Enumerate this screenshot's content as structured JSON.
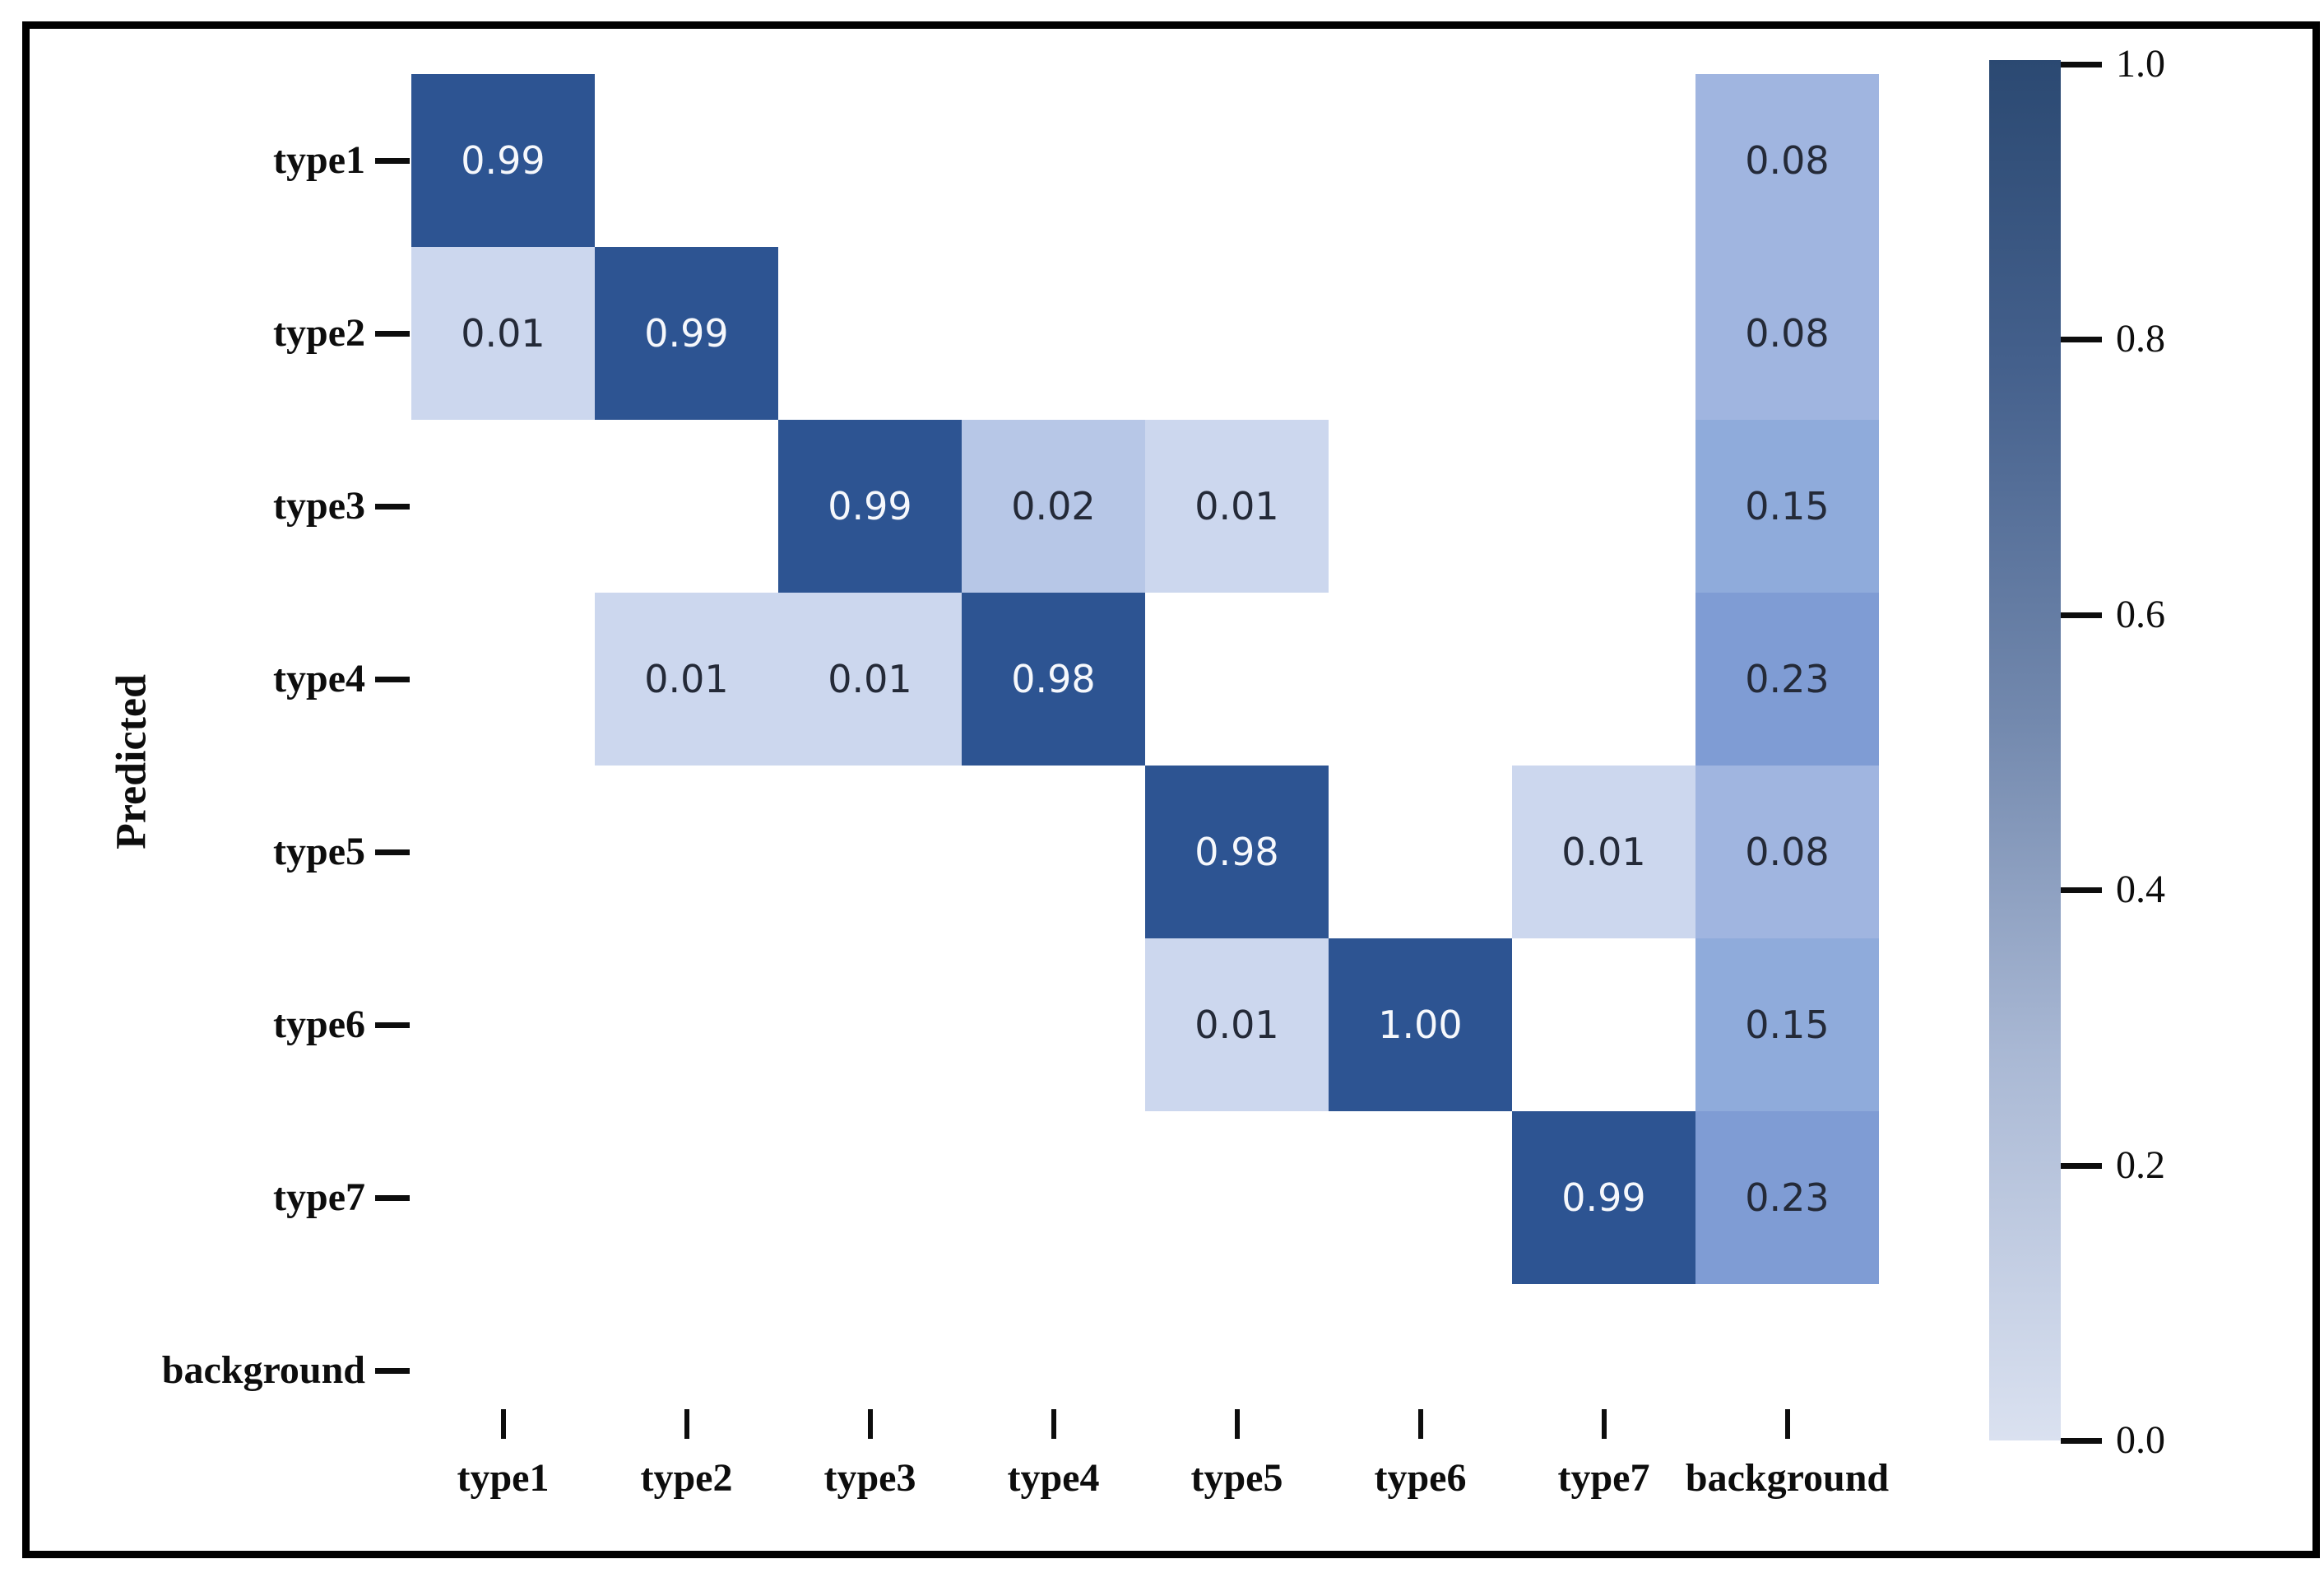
{
  "chart_data": {
    "type": "heatmap",
    "title": "",
    "xlabel": "",
    "ylabel": "Predicted",
    "x_categories": [
      "type1",
      "type2",
      "type3",
      "type4",
      "type5",
      "type6",
      "type7",
      "background"
    ],
    "y_categories": [
      "type1",
      "type2",
      "type3",
      "type4",
      "type5",
      "type6",
      "type7",
      "background"
    ],
    "values": [
      [
        0.99,
        null,
        null,
        null,
        null,
        null,
        null,
        0.08
      ],
      [
        0.01,
        0.99,
        null,
        null,
        null,
        null,
        null,
        0.08
      ],
      [
        null,
        null,
        0.99,
        0.02,
        0.01,
        null,
        null,
        0.15
      ],
      [
        null,
        0.01,
        0.01,
        0.98,
        null,
        null,
        null,
        0.23
      ],
      [
        null,
        null,
        null,
        null,
        0.98,
        null,
        0.01,
        0.08
      ],
      [
        null,
        null,
        null,
        null,
        0.01,
        1.0,
        null,
        0.15
      ],
      [
        null,
        null,
        null,
        null,
        null,
        null,
        0.99,
        0.23
      ],
      [
        null,
        null,
        null,
        null,
        null,
        null,
        null,
        null
      ]
    ],
    "cells": [
      {
        "row": 0,
        "col": 0,
        "label": "0.99"
      },
      {
        "row": 0,
        "col": 7,
        "label": "0.08"
      },
      {
        "row": 1,
        "col": 0,
        "label": "0.01"
      },
      {
        "row": 1,
        "col": 1,
        "label": "0.99"
      },
      {
        "row": 1,
        "col": 7,
        "label": "0.08"
      },
      {
        "row": 2,
        "col": 2,
        "label": "0.99"
      },
      {
        "row": 2,
        "col": 3,
        "label": "0.02"
      },
      {
        "row": 2,
        "col": 4,
        "label": "0.01"
      },
      {
        "row": 2,
        "col": 7,
        "label": "0.15"
      },
      {
        "row": 3,
        "col": 1,
        "label": "0.01"
      },
      {
        "row": 3,
        "col": 2,
        "label": "0.01"
      },
      {
        "row": 3,
        "col": 3,
        "label": "0.98"
      },
      {
        "row": 3,
        "col": 7,
        "label": "0.23"
      },
      {
        "row": 4,
        "col": 4,
        "label": "0.98"
      },
      {
        "row": 4,
        "col": 6,
        "label": "0.01"
      },
      {
        "row": 4,
        "col": 7,
        "label": "0.08"
      },
      {
        "row": 5,
        "col": 4,
        "label": "0.01"
      },
      {
        "row": 5,
        "col": 5,
        "label": "1.00"
      },
      {
        "row": 5,
        "col": 7,
        "label": "0.15"
      },
      {
        "row": 6,
        "col": 6,
        "label": "0.99"
      },
      {
        "row": 6,
        "col": 7,
        "label": "0.23"
      }
    ],
    "value_colors": {
      "0.01": "#ccd7ee",
      "0.02": "#b7c7e7",
      "0.08": "#a0b5e0",
      "0.15": "#8fabdb",
      "0.23": "#7f9cd4",
      "0.98": "#2d5492",
      "0.99": "#2d5492",
      "1.00": "#2d5492"
    },
    "colors": {
      "cell_dark": "#2d5492",
      "text_on_dark": "#f6f8fc",
      "text_on_light": "#242a38",
      "axis_text": "#0d0d0d",
      "frame": "#000000",
      "background": "#ffffff"
    },
    "colorbar": {
      "position": "right",
      "min": 0.0,
      "max": 1.0,
      "tick_labels": [
        "1.0",
        "0.8",
        "0.6",
        "0.4",
        "0.2",
        "0.0"
      ],
      "gradient": [
        "#2b4972",
        "#44608c",
        "#7389ae",
        "#a9b8d4",
        "#dae1f0"
      ]
    },
    "grid": false,
    "legend_position": "none"
  }
}
